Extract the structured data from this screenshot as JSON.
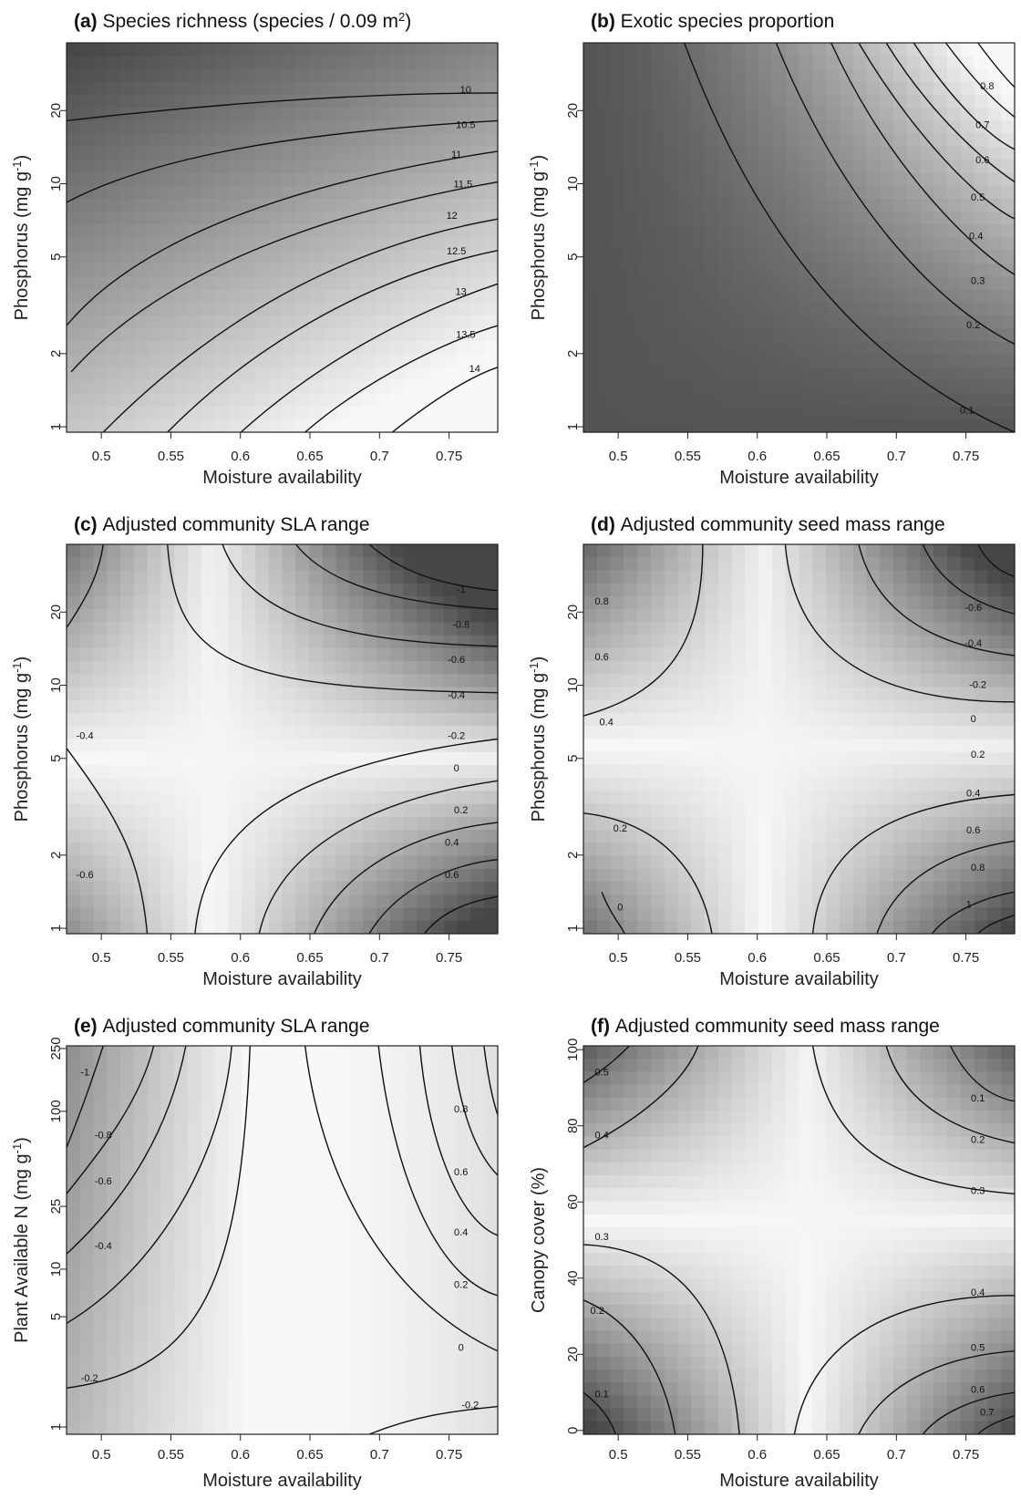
{
  "figure": {
    "xlabel": "Moisture availability",
    "x_ticks": [
      0.5,
      0.55,
      0.6,
      0.65,
      0.7,
      0.75
    ],
    "x_tick_labels": [
      "0.5",
      "0.55",
      "0.6",
      "0.65",
      "0.7",
      "0.75"
    ]
  },
  "chart_data": [
    {
      "type": "heatmap",
      "panel": "(a)",
      "title": "Species richness (species / 0.09 m",
      "title_sup": "2",
      "title_end": ")",
      "xlabel": "Moisture availability",
      "ylabel": "Phosphorus (mg g",
      "ylabel_sup": "-1",
      "ylabel_end": ")",
      "y_scale": "log",
      "xlim": [
        0.475,
        0.785
      ],
      "ylim": [
        0.95,
        38
      ],
      "y_ticks": [
        1,
        2,
        5,
        10,
        20
      ],
      "y_tick_labels": [
        "1",
        "2",
        "5",
        "10",
        "20"
      ],
      "contour_levels": [
        "10",
        "10.5",
        "11",
        "11.5",
        "12",
        "12.5",
        "13",
        "13.5",
        "14"
      ],
      "shading": "dark = low, light = high"
    },
    {
      "type": "heatmap",
      "panel": "(b)",
      "title": "Exotic species proportion",
      "xlabel": "Moisture availability",
      "ylabel": "Phosphorus (mg g",
      "ylabel_sup": "-1",
      "ylabel_end": ")",
      "y_scale": "log",
      "xlim": [
        0.475,
        0.785
      ],
      "ylim": [
        0.95,
        38
      ],
      "y_ticks": [
        1,
        2,
        5,
        10,
        20
      ],
      "y_tick_labels": [
        "1",
        "2",
        "5",
        "10",
        "20"
      ],
      "contour_levels": [
        "0.1",
        "0.2",
        "0.3",
        "0.4",
        "0.5",
        "0.6",
        "0.7",
        "0.8"
      ],
      "shading": "dark = low, light = high"
    },
    {
      "type": "heatmap",
      "panel": "(c)",
      "title": "Adjusted community SLA range",
      "xlabel": "Moisture availability",
      "ylabel": "Phosphorus (mg g",
      "ylabel_sup": "-1",
      "ylabel_end": ")",
      "y_scale": "log",
      "xlim": [
        0.475,
        0.785
      ],
      "ylim": [
        0.95,
        38
      ],
      "y_ticks": [
        1,
        2,
        5,
        10,
        20
      ],
      "y_tick_labels": [
        "1",
        "2",
        "5",
        "10",
        "20"
      ],
      "contour_levels": [
        "-1",
        "-0.8",
        "-0.6",
        "-0.4",
        "-0.2",
        "0",
        "0.2",
        "0.4",
        "0.6",
        "-0.4",
        "-0.6"
      ],
      "shading": "saddle, light at centre"
    },
    {
      "type": "heatmap",
      "panel": "(d)",
      "title": "Adjusted community seed mass range",
      "xlabel": "Moisture availability",
      "ylabel": "Phosphorus (mg g",
      "ylabel_sup": "-1",
      "ylabel_end": ")",
      "y_scale": "log",
      "xlim": [
        0.475,
        0.785
      ],
      "ylim": [
        0.95,
        38
      ],
      "y_ticks": [
        1,
        2,
        5,
        10,
        20
      ],
      "y_tick_labels": [
        "1",
        "2",
        "5",
        "10",
        "20"
      ],
      "contour_levels": [
        "-0.6",
        "-0.4",
        "-0.2",
        "0",
        "0.2",
        "0.4",
        "0.6",
        "0.8",
        "1",
        "0.8",
        "0.6",
        "0.4",
        "0.2",
        "0"
      ],
      "shading": "saddle, light at centre"
    },
    {
      "type": "heatmap",
      "panel": "(e)",
      "title": "Adjusted community SLA range",
      "xlabel": "Moisture availability",
      "ylabel": "Plant Available N (mg g",
      "ylabel_sup": "-1",
      "ylabel_end": ")",
      "y_scale": "log",
      "xlim": [
        0.475,
        0.785
      ],
      "ylim": [
        0.9,
        260
      ],
      "y_ticks": [
        1,
        5,
        10,
        25,
        100,
        250
      ],
      "y_tick_labels": [
        "1",
        "5",
        "10",
        "25",
        "100",
        "250"
      ],
      "contour_levels": [
        "-1",
        "-0.8",
        "-0.6",
        "-0.4",
        "-0.2",
        "0.8",
        "0.6",
        "0.4",
        "0.2",
        "0",
        "-0.2"
      ],
      "shading": "dark at left, light in the middle"
    },
    {
      "type": "heatmap",
      "panel": "(f)",
      "title": "Adjusted community seed mass range",
      "xlabel": "Moisture availability",
      "ylabel": "Canopy cover (%)",
      "ylabel_sup": "",
      "ylabel_end": "",
      "y_scale": "linear",
      "xlim": [
        0.475,
        0.785
      ],
      "ylim": [
        -1,
        101
      ],
      "y_ticks": [
        0,
        20,
        40,
        60,
        80,
        100
      ],
      "y_tick_labels": [
        "0",
        "20",
        "40",
        "60",
        "80",
        "100"
      ],
      "contour_levels": [
        "0.5",
        "0.4",
        "0.3",
        "0.2",
        "0.1",
        "0.1",
        "0.2",
        "0.3",
        "0.4",
        "0.5",
        "0.6",
        "0.7"
      ],
      "shading": "saddle, light at centre"
    }
  ]
}
